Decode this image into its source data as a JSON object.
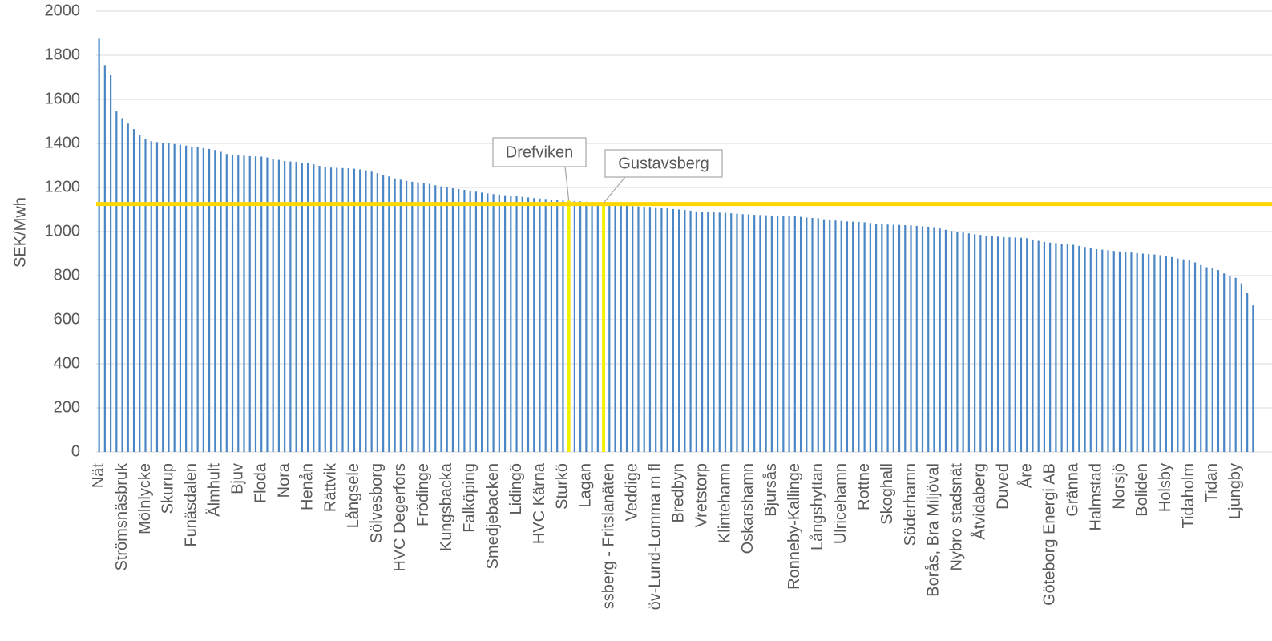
{
  "chart_data": {
    "type": "bar",
    "y_label": "SEK/Mwh",
    "categories": [
      "Nät",
      null,
      null,
      null,
      "Strömsnäsbruk",
      null,
      null,
      null,
      "Mölnlycke",
      null,
      null,
      null,
      "Skurup",
      null,
      null,
      null,
      "Funäsdalen",
      null,
      null,
      null,
      "Älmhult",
      null,
      null,
      null,
      "Bjuv",
      null,
      null,
      null,
      "Floda",
      null,
      null,
      null,
      "Nora",
      null,
      null,
      null,
      "Henån",
      null,
      null,
      null,
      "Rättvik",
      null,
      null,
      null,
      "Långsele",
      null,
      null,
      null,
      "Sölvesborg",
      null,
      null,
      null,
      "HVC Degerfors",
      null,
      null,
      null,
      "Frödinge",
      null,
      null,
      null,
      "Kungsbacka",
      null,
      null,
      null,
      "Falköping",
      null,
      null,
      null,
      "Smedjebacken",
      null,
      null,
      null,
      "Lidingö",
      null,
      null,
      null,
      "HVC Kärna",
      null,
      null,
      null,
      "Sturkö",
      null,
      null,
      null,
      "Lagan",
      null,
      null,
      null,
      "ssberg - Fritslanäten",
      null,
      null,
      null,
      "Veddige",
      null,
      null,
      null,
      "öv-Lund-Lomma m fl",
      null,
      null,
      null,
      "Bredbyn",
      null,
      null,
      null,
      "Vretstorp",
      null,
      null,
      null,
      "Klintehamn",
      null,
      null,
      null,
      "Oskarshamn",
      null,
      null,
      null,
      "Bjursås",
      null,
      null,
      null,
      "Ronneby-Kallinge",
      null,
      null,
      null,
      "Långshyttan",
      null,
      null,
      null,
      "Ulricehamn",
      null,
      null,
      null,
      "Rottne",
      null,
      null,
      null,
      "Skoghall",
      null,
      null,
      null,
      "Söderhamn",
      null,
      null,
      null,
      "Borås, Bra Miljöval",
      null,
      null,
      null,
      "Nybro stadsnät",
      null,
      null,
      null,
      "Åtvidaberg",
      null,
      null,
      null,
      "Duved",
      null,
      null,
      null,
      "Åre",
      null,
      null,
      null,
      "Göteborg Energi AB",
      null,
      null,
      null,
      "Gränna",
      null,
      null,
      null,
      "Halmstad",
      null,
      null,
      null,
      "Norsjö",
      null,
      null,
      null,
      "Boliden",
      null,
      null,
      null,
      "Holsby",
      null,
      null,
      null,
      "Tidaholm",
      null,
      null,
      null,
      "Tidan",
      null,
      null,
      null,
      "Ljungby",
      null,
      null,
      null
    ],
    "values": [
      1875,
      1755,
      1710,
      1545,
      1515,
      1490,
      1465,
      1440,
      1418,
      1410,
      1406,
      1403,
      1400,
      1397,
      1394,
      1390,
      1386,
      1383,
      1379,
      1375,
      1370,
      1362,
      1352,
      1346,
      1345,
      1344,
      1342,
      1341,
      1340,
      1336,
      1330,
      1325,
      1320,
      1318,
      1316,
      1313,
      1310,
      1305,
      1298,
      1292,
      1290,
      1289,
      1288,
      1287,
      1285,
      1282,
      1278,
      1272,
      1265,
      1258,
      1250,
      1241,
      1235,
      1230,
      1226,
      1223,
      1220,
      1216,
      1210,
      1205,
      1200,
      1196,
      1193,
      1189,
      1185,
      1181,
      1177,
      1173,
      1170,
      1168,
      1165,
      1162,
      1160,
      1158,
      1155,
      1152,
      1150,
      1148,
      1145,
      1142,
      1140,
      1140,
      1138,
      1137,
      1135,
      1134,
      1132,
      1130,
      1126,
      1124,
      1121,
      1118,
      1115,
      1114,
      1113,
      1112,
      1110,
      1108,
      1105,
      1102,
      1100,
      1098,
      1095,
      1092,
      1090,
      1088,
      1087,
      1086,
      1085,
      1083,
      1081,
      1079,
      1078,
      1076,
      1075,
      1074,
      1073,
      1072,
      1072,
      1071,
      1070,
      1067,
      1064,
      1062,
      1060,
      1056,
      1052,
      1050,
      1048,
      1046,
      1045,
      1044,
      1042,
      1039,
      1036,
      1034,
      1032,
      1031,
      1030,
      1029,
      1028,
      1026,
      1024,
      1022,
      1020,
      1014,
      1008,
      1003,
      1000,
      996,
      992,
      988,
      985,
      982,
      979,
      977,
      975,
      974,
      973,
      972,
      970,
      964,
      958,
      953,
      950,
      948,
      945,
      942,
      940,
      935,
      930,
      925,
      920,
      918,
      915,
      912,
      910,
      907,
      905,
      902,
      900,
      898,
      896,
      893,
      890,
      884,
      878,
      874,
      870,
      860,
      848,
      838,
      835,
      825,
      810,
      800,
      790,
      765,
      720,
      665
    ],
    "color": "#4a86c5",
    "highlight_color": "#f2f000",
    "reference_line": {
      "value": 1125,
      "color": "#ffd700"
    },
    "annotations": [
      {
        "text": "Drefviken",
        "category_index": 81
      },
      {
        "text": "Gustavsberg",
        "category_index": 87
      }
    ],
    "ylim": [
      0,
      2000
    ],
    "yticks": [
      0,
      200,
      400,
      600,
      800,
      1000,
      1200,
      1400,
      1600,
      1800,
      2000
    ],
    "grid": true
  }
}
